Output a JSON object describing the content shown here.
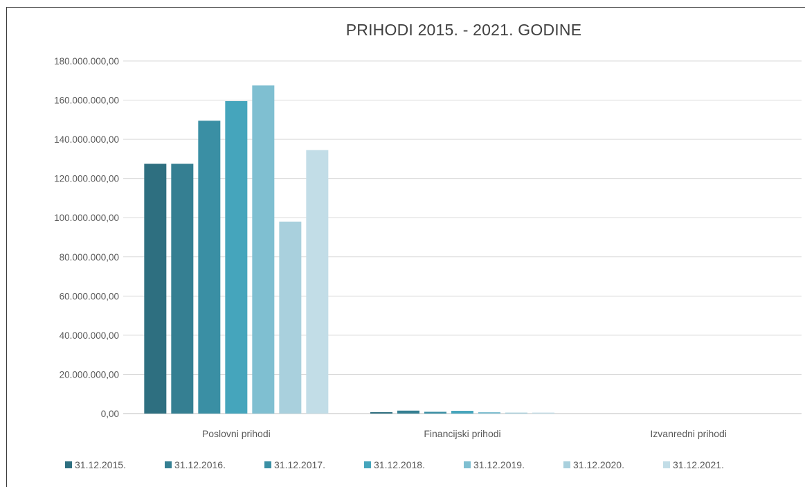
{
  "chart_data": {
    "type": "bar",
    "title": "PRIHODI 2015. - 2021. GODINE",
    "categories": [
      "Poslovni prihodi",
      "Financijski prihodi",
      "Izvanredni prihodi"
    ],
    "ylim": [
      0,
      180000000
    ],
    "yticks": [
      {
        "value": 0,
        "label": "0,00"
      },
      {
        "value": 20000000,
        "label": "20.000.000,00"
      },
      {
        "value": 40000000,
        "label": "40.000.000,00"
      },
      {
        "value": 60000000,
        "label": "60.000.000,00"
      },
      {
        "value": 80000000,
        "label": "80.000.000,00"
      },
      {
        "value": 100000000,
        "label": "100.000.000,00"
      },
      {
        "value": 120000000,
        "label": "120.000.000,00"
      },
      {
        "value": 140000000,
        "label": "140.000.000,00"
      },
      {
        "value": 160000000,
        "label": "160.000.000,00"
      },
      {
        "value": 180000000,
        "label": "180.000.000,00"
      }
    ],
    "grid": true,
    "legend_position": "bottom",
    "series": [
      {
        "name": "31.12.2015.",
        "color": "#2e6f80",
        "values": [
          127500000,
          700000,
          0
        ]
      },
      {
        "name": "31.12.2016.",
        "color": "#357f92",
        "values": [
          127500000,
          1500000,
          0
        ]
      },
      {
        "name": "31.12.2017.",
        "color": "#3a8fa4",
        "values": [
          149500000,
          900000,
          0
        ]
      },
      {
        "name": "31.12.2018.",
        "color": "#45a5bc",
        "values": [
          159500000,
          1400000,
          0
        ]
      },
      {
        "name": "31.12.2019.",
        "color": "#7fbfd1",
        "values": [
          167500000,
          700000,
          0
        ]
      },
      {
        "name": "31.12.2020.",
        "color": "#a9d0dd",
        "values": [
          98000000,
          500000,
          0
        ]
      },
      {
        "name": "31.12.2021.",
        "color": "#c2dde7",
        "values": [
          134500000,
          500000,
          0
        ]
      }
    ]
  }
}
